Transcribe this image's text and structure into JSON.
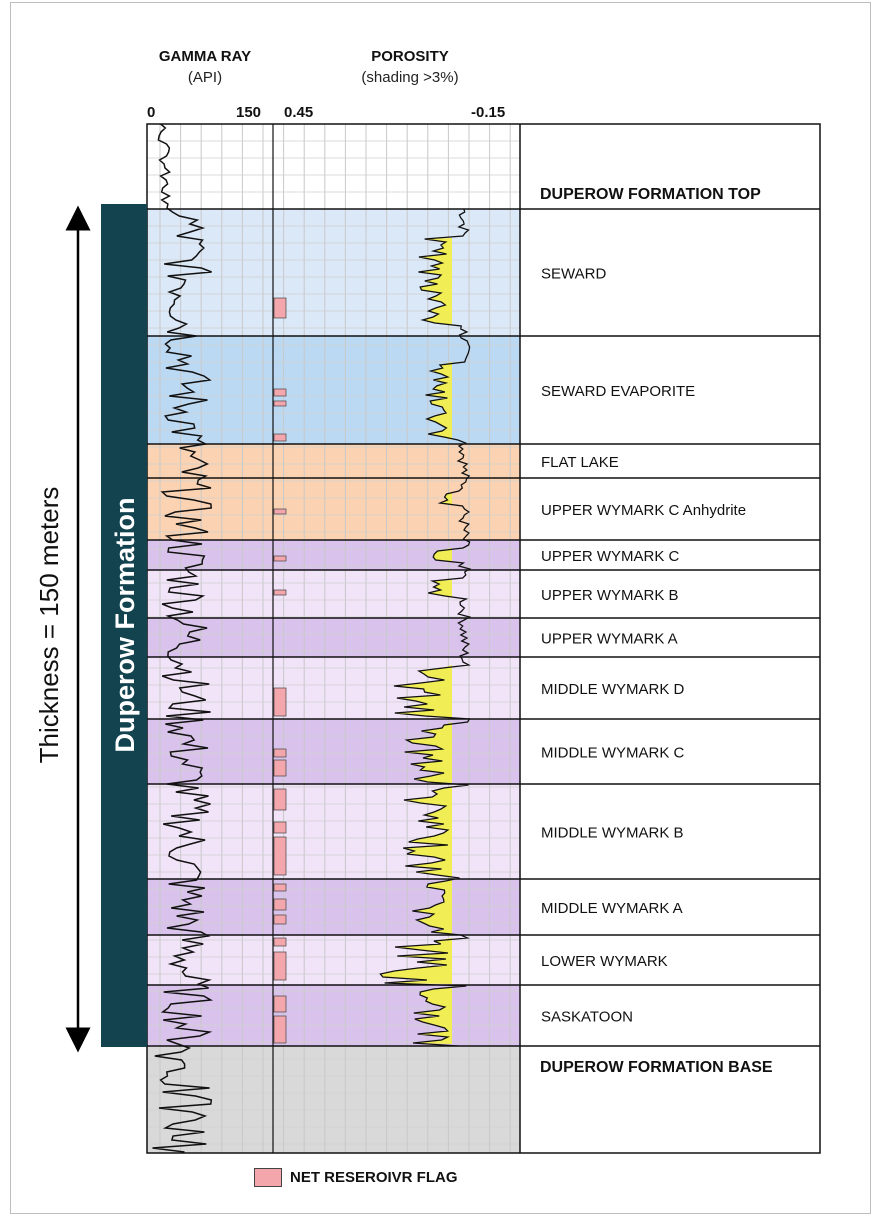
{
  "header": {
    "gamma": {
      "title": "GAMMA RAY",
      "unit": "(API)",
      "min": "0",
      "max": "150"
    },
    "porosity": {
      "title": "POROSITY",
      "subtitle": "(shading >3%)",
      "left": "0.45",
      "right": "-0.15"
    }
  },
  "formation_label": "Duperow Formation",
  "thickness_label": "Thickness = 150 meters",
  "legend": {
    "net_reservoir": "NET RESEROIVR FLAG"
  },
  "colors": {
    "light_blue": "#dbe8f8",
    "blue": "#bcd9f4",
    "orange": "#fbd3b2",
    "purple": "#d9c3ec",
    "light_purple": "#f1e3f8",
    "grey": "#d9d9d9",
    "yellow": "#f1ee55",
    "net_flag": "#f4a6ad",
    "formation_bar": "#12434f"
  },
  "zones": [
    {
      "name": "DUPEROW FORMATION TOP",
      "bold": true,
      "fill": "white"
    },
    {
      "name": "SEWARD",
      "fill": "light_blue"
    },
    {
      "name": "SEWARD EVAPORITE",
      "fill": "blue"
    },
    {
      "name": "FLAT LAKE",
      "fill": "orange"
    },
    {
      "name": "UPPER WYMARK C Anhydrite",
      "fill": "orange"
    },
    {
      "name": "UPPER WYMARK C",
      "fill": "purple"
    },
    {
      "name": "UPPER WYMARK B",
      "fill": "light_purple"
    },
    {
      "name": "UPPER WYMARK A",
      "fill": "purple"
    },
    {
      "name": "MIDDLE WYMARK D",
      "fill": "light_purple"
    },
    {
      "name": "MIDDLE WYMARK C",
      "fill": "purple"
    },
    {
      "name": "MIDDLE WYMARK B",
      "fill": "light_purple"
    },
    {
      "name": "MIDDLE WYMARK A",
      "fill": "purple"
    },
    {
      "name": "LOWER WYMARK",
      "fill": "light_purple"
    },
    {
      "name": "SASKATOON",
      "fill": "purple"
    },
    {
      "name": "DUPEROW FORMATION BASE",
      "bold": true,
      "fill": "grey"
    }
  ]
}
